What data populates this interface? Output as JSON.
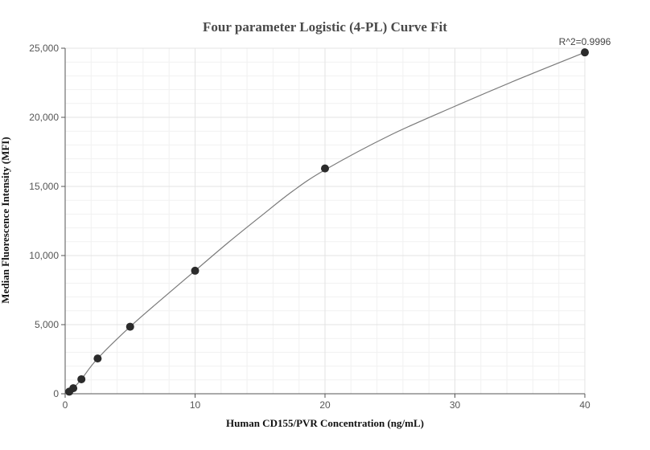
{
  "chart_data": {
    "type": "scatter",
    "title": "Four parameter Logistic (4-PL) Curve Fit",
    "xlabel": "Human CD155/PVR Concentration (ng/mL)",
    "ylabel": "Median Fluorescence Intensity (MFI)",
    "xlim": [
      0,
      40
    ],
    "ylim": [
      0,
      25000
    ],
    "x_ticks": [
      0,
      10,
      20,
      30,
      40
    ],
    "y_ticks": [
      0,
      5000,
      10000,
      15000,
      20000,
      25000
    ],
    "x_tick_labels": [
      "0",
      "10",
      "20",
      "30",
      "40"
    ],
    "y_tick_labels": [
      "0",
      "5,000",
      "10,000",
      "15,000",
      "20,000",
      "25,000"
    ],
    "grid": true,
    "points": {
      "x": [
        0.3125,
        0.625,
        1.25,
        2.5,
        5,
        10,
        20,
        40
      ],
      "y": [
        150,
        400,
        1050,
        2550,
        4850,
        8900,
        16300,
        24700
      ]
    },
    "fit_curve": {
      "x": [
        0,
        0.3125,
        0.625,
        1.25,
        2.5,
        5,
        7.5,
        10,
        12.5,
        15,
        17.5,
        20,
        25,
        30,
        35,
        40
      ],
      "y": [
        0,
        150,
        400,
        1050,
        2550,
        4850,
        6900,
        8900,
        10900,
        12800,
        14650,
        16200,
        18700,
        20800,
        22800,
        24700
      ]
    },
    "annotation": "R^2=0.9996"
  }
}
